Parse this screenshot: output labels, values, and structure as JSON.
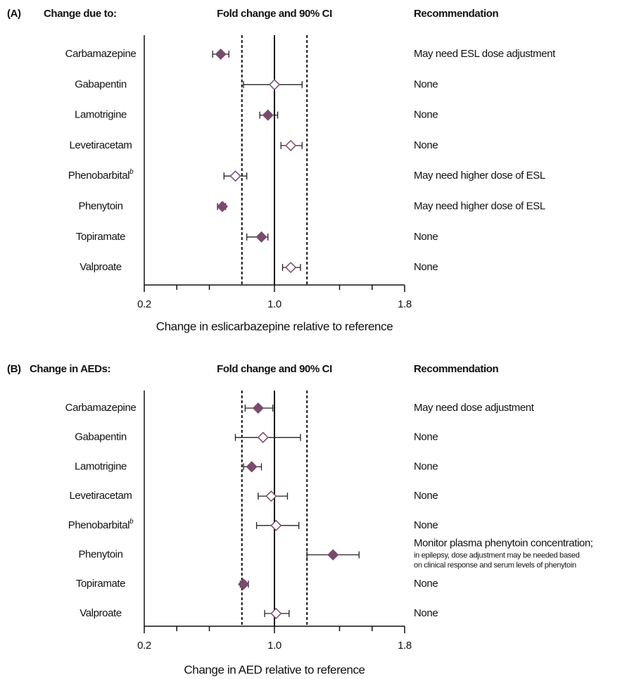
{
  "chart_data": [
    {
      "type": "forest",
      "panel_label": "(A)",
      "left_header": "Change due to:",
      "center_header": "Fold change and 90% CI",
      "right_header": "Recommendation",
      "xlabel": "Change in eslicarbazepine relative to reference",
      "categories": [
        "Carbamazepine",
        "Gabapentin",
        "Lamotrigine",
        "Levetiracetam",
        {
          "text": "Phenobarbital",
          "sup": "b"
        },
        "Phenytoin",
        "Topiramate",
        "Valproate"
      ],
      "values": [
        0.67,
        1.0,
        0.96,
        1.1,
        0.76,
        0.68,
        0.92,
        1.1
      ],
      "ci_low": [
        0.62,
        0.81,
        0.91,
        1.04,
        0.69,
        0.65,
        0.83,
        1.05
      ],
      "ci_high": [
        0.72,
        1.17,
        1.02,
        1.17,
        0.83,
        0.7,
        0.96,
        1.16
      ],
      "filled": [
        true,
        false,
        true,
        false,
        false,
        true,
        true,
        false
      ],
      "recommendations": [
        "May need ESL dose adjustment",
        "None",
        "None",
        "None",
        "May need higher dose of ESL",
        "May need higher dose of ESL",
        "None",
        "None"
      ],
      "color": "#7a4a6e",
      "xlim": [
        0.2,
        1.8
      ],
      "xticks": [
        0.2,
        {
          "value": 1,
          "label": "1.0"
        },
        1.8
      ],
      "minor_xticks": [
        0.4,
        0.6,
        1.4,
        1.6
      ],
      "reference_line": 1,
      "dashed_lines": [
        0.8,
        1.2
      ]
    },
    {
      "type": "forest",
      "panel_label": "(B)",
      "left_header": "Change in AEDs:",
      "center_header": "Fold change and 90% CI",
      "right_header": "Recommendation",
      "xlabel": "Change in AED relative to reference",
      "categories": [
        "Carbamazepine",
        "Gabapentin",
        "Lamotrigine",
        "Levetiracetam",
        {
          "text": "Phenobarbital",
          "sup": "b"
        },
        "Phenytoin",
        "Topiramate",
        "Valproate"
      ],
      "values": [
        0.9,
        0.93,
        0.86,
        0.98,
        1.01,
        1.36,
        0.81,
        1.01
      ],
      "ci_low": [
        0.82,
        0.76,
        0.81,
        0.9,
        0.89,
        1.2,
        0.79,
        0.94
      ],
      "ci_high": [
        0.99,
        1.16,
        0.92,
        1.08,
        1.15,
        1.52,
        0.84,
        1.09
      ],
      "filled": [
        true,
        false,
        true,
        false,
        false,
        true,
        true,
        false
      ],
      "recommendations": [
        "May need dose adjustment",
        "None",
        "None",
        "None",
        "None",
        {
          "text": "Monitor plasma phenytoin concentration;",
          "note": [
            "in epilepsy, dose adjustment may be needed based",
            "on clinical response and serum levels of phenytoin"
          ]
        },
        "None",
        "None"
      ],
      "color": "#7a4a6e",
      "xlim": [
        0.2,
        1.8
      ],
      "xticks": [
        0.2,
        {
          "value": 1,
          "label": "1.0"
        },
        1.8
      ],
      "minor_xticks": [
        0.4,
        0.6,
        1.4,
        1.6
      ],
      "reference_line": 1,
      "dashed_lines": [
        0.8,
        1.2
      ]
    }
  ]
}
